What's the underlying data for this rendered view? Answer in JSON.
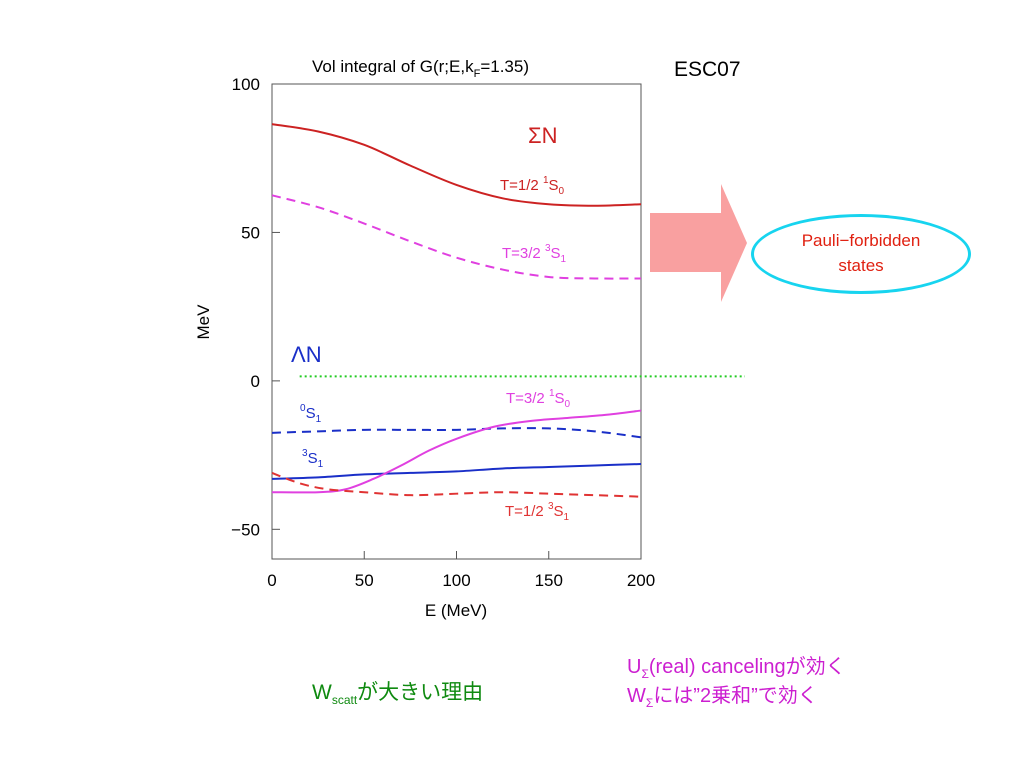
{
  "chart_data": {
    "type": "line",
    "title_main": "Vol integral of G(r;E,k",
    "title_sub": "F",
    "title_tail": "=1.35)",
    "xlabel": "E (MeV)",
    "ylabel": "MeV",
    "xlim": [
      0,
      200
    ],
    "ylim": [
      -60,
      100
    ],
    "xticks": [
      0,
      50,
      100,
      150,
      200
    ],
    "yticks": [
      100,
      50,
      0,
      -50
    ],
    "xtick_labels": [
      "0",
      "50",
      "100",
      "150",
      "200"
    ],
    "ytick_labels": [
      "100",
      "50",
      "0",
      "−50"
    ],
    "group_labels": {
      "sigma_n": "ΣN",
      "lambda_n": "ΛN"
    },
    "series": [
      {
        "id": "sn_t12_1s0",
        "color": "#cc2222",
        "dash": "solid",
        "x": [
          0,
          25,
          50,
          75,
          100,
          125,
          150,
          175,
          200
        ],
        "y": [
          86.5,
          84,
          79.5,
          72.5,
          66,
          61.5,
          59.5,
          59,
          59.5
        ]
      },
      {
        "id": "sn_t32_3s1",
        "color": "#e040e0",
        "dash": "dashed",
        "x": [
          0,
          25,
          50,
          75,
          100,
          125,
          150,
          175,
          200
        ],
        "y": [
          62.5,
          58.5,
          53,
          47,
          41.5,
          37.5,
          35,
          34.5,
          34.5
        ]
      },
      {
        "id": "ln_0s1",
        "color": "#1a2fc8",
        "dash": "dashed",
        "x": [
          0,
          25,
          50,
          75,
          100,
          125,
          150,
          175,
          200
        ],
        "y": [
          -17.5,
          -17,
          -16.5,
          -16.5,
          -16.5,
          -16,
          -16,
          -17,
          -19
        ]
      },
      {
        "id": "ln_3s1",
        "color": "#1a2fc8",
        "dash": "solid",
        "x": [
          0,
          25,
          50,
          75,
          100,
          125,
          150,
          175,
          200
        ],
        "y": [
          -33,
          -32.5,
          -31.5,
          -31,
          -30.5,
          -29.5,
          -29,
          -28.5,
          -28
        ]
      },
      {
        "id": "sn_t32_1s0",
        "color": "#e040e0",
        "dash": "solid",
        "x": [
          0,
          25,
          40,
          55,
          70,
          85,
          100,
          120,
          140,
          160,
          180,
          200
        ],
        "y": [
          -37.5,
          -37.5,
          -36.5,
          -33,
          -28.5,
          -23.5,
          -19.5,
          -15.5,
          -13.5,
          -12.5,
          -11.5,
          -10
        ]
      },
      {
        "id": "sn_t12_3s1",
        "color": "#e03333",
        "dash": "dashed",
        "x": [
          0,
          15,
          30,
          50,
          75,
          100,
          125,
          150,
          175,
          200
        ],
        "y": [
          -31,
          -34.5,
          -36.5,
          -37.5,
          -38.5,
          -38,
          -37.5,
          -38,
          -38.5,
          -39
        ]
      }
    ],
    "series_labels": [
      {
        "series": "sn_t12_1s0",
        "text": "T=1/2 ",
        "sup": "1",
        "base": "S",
        "sub": "0",
        "color": "#cc2222"
      },
      {
        "series": "sn_t32_3s1",
        "text": "T=3/2 ",
        "sup": "3",
        "base": "S",
        "sub": "1",
        "color": "#e040e0"
      },
      {
        "series": "sn_t32_1s0",
        "text": "T=3/2 ",
        "sup": "1",
        "base": "S",
        "sub": "0",
        "color": "#e040e0"
      },
      {
        "series": "ln_0s1",
        "text": "",
        "sup": "0",
        "base": "S",
        "sub": "1",
        "color": "#1a2fc8"
      },
      {
        "series": "ln_3s1",
        "text": "",
        "sup": "3",
        "base": "S",
        "sub": "1",
        "color": "#1a2fc8"
      },
      {
        "series": "sn_t12_3s1",
        "text": "T=1/2 ",
        "sup": "3",
        "base": "S",
        "sub": "1",
        "color": "#e03333"
      }
    ],
    "reference_line": {
      "y": 1.5,
      "color": "#22cc22",
      "style": "dotted"
    },
    "grid": false
  },
  "labels": {
    "model": "ESC07",
    "pauli_line1": "Pauli−forbidden",
    "pauli_line2": "states",
    "wscatt_w": "W",
    "wscatt_sub": "scatt",
    "wscatt_rest": "が大きい理由",
    "note1_u": "U",
    "note1_sub": "Σ",
    "note1_rest": "(real)  cancelingが効く",
    "note2_w": "W",
    "note2_sub": "Σ",
    "note2_rest": "には”2乗和”で効く"
  },
  "colors": {
    "arrow": "#f9a0a0",
    "ellipse": "#17d4ef",
    "pauli_text": "#e02010",
    "wscatt": "#0f8a10",
    "notes": "#cc1fd0"
  }
}
